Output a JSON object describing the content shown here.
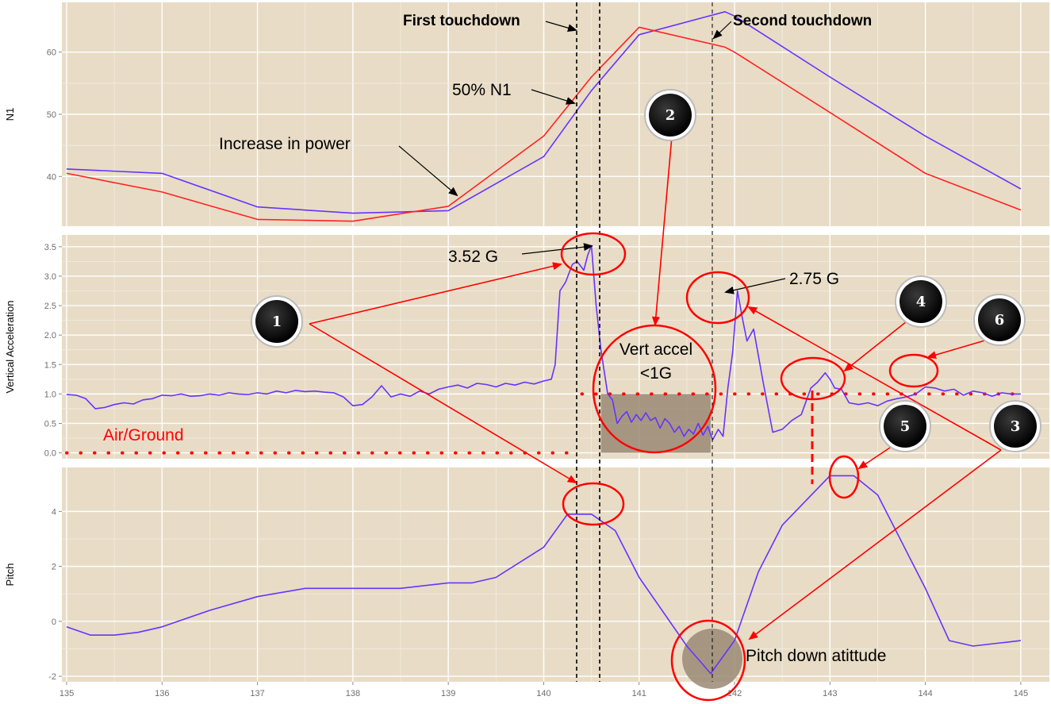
{
  "chart_data": [
    {
      "type": "line",
      "ylabel": "N1",
      "ylim": [
        32,
        68
      ],
      "yticks": [
        40,
        50,
        60
      ],
      "xlim": [
        134.95,
        145.3
      ],
      "series": [
        {
          "color": "#6633ff",
          "x": [
            135,
            136,
            137,
            138,
            139,
            140,
            140.5,
            141,
            141.9,
            142,
            143,
            144,
            145
          ],
          "y": [
            41.2,
            40.5,
            35.1,
            34.1,
            34.5,
            43.2,
            53.8,
            62.8,
            66.5,
            65.8,
            56,
            46.5,
            38
          ]
        },
        {
          "color": "#ff2222",
          "x": [
            135,
            136,
            137,
            138,
            139,
            140,
            140.5,
            141,
            141.9,
            142,
            143,
            144,
            145
          ],
          "y": [
            40.5,
            37.5,
            33.1,
            32.8,
            35.2,
            46.5,
            56,
            64,
            60.8,
            60,
            50.3,
            40.5,
            34.6
          ]
        }
      ]
    },
    {
      "type": "line",
      "ylabel": "Vertical Acceleration",
      "ylim": [
        -0.1,
        3.7
      ],
      "yticks": [
        0.0,
        0.5,
        1.0,
        1.5,
        2.0,
        2.5,
        3.0,
        3.5
      ],
      "ytick_labels": [
        "0.0",
        "0.5",
        "1.0",
        "1.5",
        "2.0",
        "2.5",
        "3.0",
        "3.5"
      ],
      "xlim": [
        134.95,
        145.3
      ],
      "series": [
        {
          "color": "#6633ff",
          "x": [
            135,
            135.1,
            135.2,
            135.3,
            135.4,
            135.5,
            135.6,
            135.7,
            135.8,
            135.9,
            136,
            136.1,
            136.2,
            136.3,
            136.4,
            136.5,
            136.6,
            136.7,
            136.8,
            136.9,
            137,
            137.1,
            137.2,
            137.3,
            137.4,
            137.5,
            137.6,
            137.7,
            137.8,
            137.9,
            138,
            138.1,
            138.2,
            138.3,
            138.4,
            138.5,
            138.6,
            138.7,
            138.8,
            138.9,
            139,
            139.1,
            139.2,
            139.3,
            139.4,
            139.5,
            139.6,
            139.7,
            139.8,
            139.9,
            140,
            140.08,
            140.12,
            140.17,
            140.23,
            140.3,
            140.35,
            140.42,
            140.46,
            140.5,
            140.55,
            140.6,
            140.67,
            140.72,
            140.77,
            140.82,
            140.87,
            140.92,
            140.97,
            141.02,
            141.07,
            141.12,
            141.17,
            141.22,
            141.27,
            141.32,
            141.37,
            141.42,
            141.47,
            141.52,
            141.57,
            141.62,
            141.67,
            141.72,
            141.77,
            141.83,
            141.88,
            141.93,
            141.98,
            142.03,
            142.08,
            142.13,
            142.2,
            142.3,
            142.4,
            142.5,
            142.6,
            142.7,
            142.8,
            142.87,
            142.95,
            143,
            143.05,
            143.12,
            143.2,
            143.3,
            143.4,
            143.5,
            143.6,
            143.7,
            143.8,
            143.9,
            144,
            144.1,
            144.2,
            144.3,
            144.4,
            144.5,
            144.6,
            144.7,
            144.8,
            144.9,
            145
          ],
          "y": [
            0.99,
            0.98,
            0.92,
            0.75,
            0.77,
            0.82,
            0.85,
            0.83,
            0.9,
            0.92,
            0.98,
            0.97,
            1.0,
            0.96,
            0.97,
            1.0,
            0.98,
            1.02,
            1.0,
            0.99,
            1.02,
            1.0,
            1.05,
            1.02,
            1.06,
            1.04,
            1.05,
            1.03,
            1.02,
            0.95,
            0.8,
            0.82,
            0.95,
            1.14,
            0.95,
            1.0,
            0.96,
            1.05,
            1.0,
            1.08,
            1.12,
            1.15,
            1.1,
            1.18,
            1.16,
            1.12,
            1.18,
            1.15,
            1.2,
            1.17,
            1.22,
            1.25,
            1.5,
            2.75,
            2.9,
            3.2,
            3.25,
            3.1,
            3.35,
            3.52,
            2.5,
            1.75,
            1.0,
            0.9,
            0.5,
            0.62,
            0.7,
            0.52,
            0.65,
            0.55,
            0.68,
            0.55,
            0.6,
            0.42,
            0.58,
            0.5,
            0.35,
            0.45,
            0.28,
            0.4,
            0.32,
            0.5,
            0.3,
            0.45,
            0.22,
            0.4,
            0.28,
            1.1,
            1.7,
            2.75,
            2.3,
            1.9,
            2.1,
            1.2,
            0.35,
            0.4,
            0.55,
            0.65,
            1.1,
            1.2,
            1.36,
            1.25,
            1.1,
            1.08,
            0.85,
            0.82,
            0.85,
            0.8,
            0.88,
            0.92,
            0.95,
            1.0,
            1.12,
            1.1,
            1.05,
            1.08,
            0.98,
            1.05,
            1.02,
            0.96,
            1.02,
            1.0,
            1.0
          ]
        }
      ],
      "annotations": {
        "shaded_region": {
          "x": [
            140.6,
            141.75
          ],
          "y": [
            0.0,
            1.0
          ]
        },
        "reference_lines": [
          {
            "y": 1.0,
            "x": [
              140.4,
              145
            ],
            "color": "#ff0000",
            "style": "dotted"
          },
          {
            "y": 0.0,
            "x": [
              135,
              140.3
            ],
            "color": "#ff0000",
            "style": "dotted"
          }
        ]
      }
    },
    {
      "type": "line",
      "ylabel": "Pitch",
      "ylim": [
        -2.2,
        5.6
      ],
      "yticks": [
        -2,
        0,
        2,
        4
      ],
      "xlim": [
        134.95,
        145.3
      ],
      "xticks": [
        135,
        136,
        137,
        138,
        139,
        140,
        141,
        142,
        143,
        144,
        145
      ],
      "series": [
        {
          "color": "#6633ff",
          "x": [
            135,
            135.25,
            135.5,
            135.75,
            136,
            136.5,
            137,
            137.5,
            138,
            138.5,
            139,
            139.25,
            139.5,
            140,
            140.25,
            140.5,
            140.75,
            141,
            141.5,
            141.75,
            142,
            142.25,
            142.5,
            143,
            143.25,
            143.5,
            144,
            144.25,
            144.5,
            144.75,
            145
          ],
          "y": [
            -0.2,
            -0.5,
            -0.5,
            -0.4,
            -0.2,
            0.4,
            0.9,
            1.2,
            1.2,
            1.2,
            1.4,
            1.4,
            1.6,
            2.7,
            3.9,
            3.9,
            3.3,
            1.6,
            -0.9,
            -1.9,
            -0.7,
            1.8,
            3.5,
            5.3,
            5.3,
            4.6,
            1.2,
            -0.7,
            -0.9,
            -0.8,
            -0.7
          ]
        }
      ]
    }
  ],
  "annotations": {
    "first_touchdown": "First touchdown",
    "second_touchdown": "Second touchdown",
    "n1_50": "50% N1",
    "increase_power": "Increase in power",
    "peak_1": "3.52 G",
    "peak_2": "2.75 G",
    "vert_accel_1": "Vert accel",
    "vert_accel_2": "<1G",
    "air_ground": "Air/Ground",
    "pitch_down": "Pitch down atittude"
  },
  "badges": [
    "1",
    "2",
    "3",
    "4",
    "5",
    "6"
  ],
  "colors": {
    "panel": "#e8dcc6",
    "grid": "#ffffff",
    "trace": "#6633ff",
    "trace_red": "#ff2222",
    "callout": "#ff0000"
  }
}
